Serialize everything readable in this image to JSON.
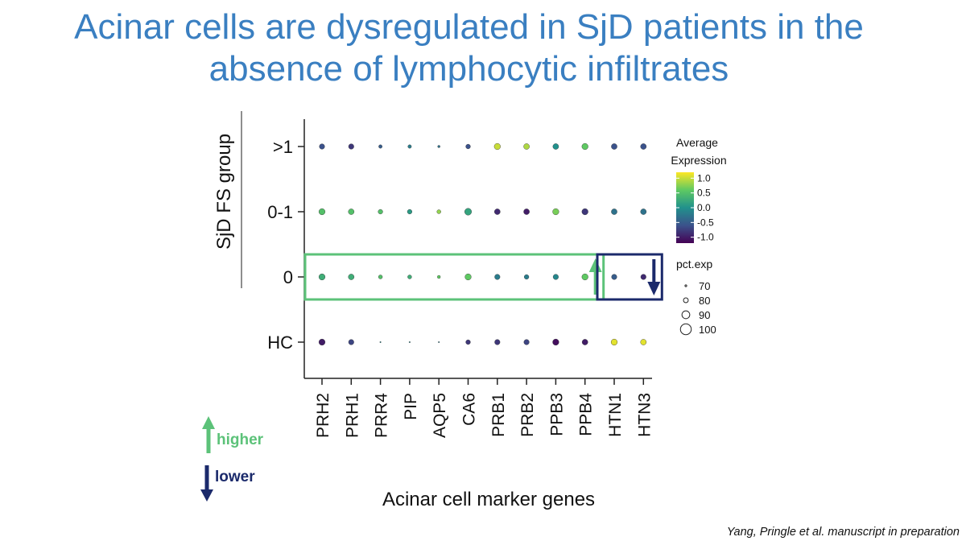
{
  "slide": {
    "title_line1": "Acinar cells are dysregulated in SjD patients in the",
    "title_line2": "absence of lymphocytic infiltrates",
    "citation": "Yang, Pringle et al. manuscript in preparation"
  },
  "chart_data": {
    "type": "dotplot",
    "xlabel": "Acinar cell marker genes",
    "ylabel": "SjD FS group",
    "genes": [
      "PRH2",
      "PRH1",
      "PRR4",
      "PIP",
      "AQP5",
      "CA6",
      "PRB1",
      "PRB2",
      "PPB3",
      "PPB4",
      "HTN1",
      "HTN3"
    ],
    "groups": [
      ">1",
      "0-1",
      "0",
      "HC"
    ],
    "expression": [
      [
        -0.6,
        -0.8,
        -0.5,
        -0.2,
        -0.3,
        -0.6,
        1.0,
        0.9,
        0.0,
        0.6,
        -0.6,
        -0.6
      ],
      [
        0.5,
        0.5,
        0.5,
        0.1,
        0.8,
        0.2,
        -0.9,
        -1.0,
        0.7,
        -0.8,
        -0.3,
        -0.3
      ],
      [
        0.3,
        0.3,
        0.5,
        0.3,
        0.6,
        0.6,
        -0.2,
        -0.2,
        -0.1,
        0.6,
        -0.5,
        -0.9
      ],
      [
        -1.0,
        -0.7,
        -0.1,
        -0.1,
        -0.2,
        -0.8,
        -0.8,
        -0.7,
        -1.1,
        -1.0,
        1.1,
        1.1
      ]
    ],
    "pct_exp": [
      [
        88,
        88,
        80,
        80,
        75,
        85,
        92,
        90,
        90,
        92,
        90,
        90
      ],
      [
        92,
        90,
        85,
        85,
        82,
        95,
        90,
        90,
        92,
        92,
        90,
        90
      ],
      [
        92,
        90,
        82,
        82,
        78,
        92,
        88,
        85,
        88,
        92,
        88,
        88
      ],
      [
        92,
        88,
        70,
        70,
        70,
        85,
        88,
        88,
        92,
        90,
        92,
        90
      ]
    ],
    "legend_color": {
      "title_line1": "Average",
      "title_line2": "Expression",
      "ticks": [
        "1.0",
        "0.5",
        "0.0",
        "-0.5",
        "-1.0"
      ],
      "range": [
        -1.2,
        1.2
      ]
    },
    "legend_size": {
      "title": "pct.exp",
      "ticks": [
        "70",
        "80",
        "90",
        "100"
      ]
    },
    "highlight_up": {
      "from_gene": "PRH2",
      "to_gene": "PPB4",
      "group": "0",
      "color": "#5cc279"
    },
    "highlight_down": {
      "from_gene": "HTN1",
      "to_gene": "HTN3",
      "group": "0",
      "color": "#1b2a6b"
    },
    "key": {
      "higher_label": "higher",
      "lower_label": "lower",
      "higher_color": "#5cc279",
      "lower_color": "#1b2a6b"
    }
  }
}
